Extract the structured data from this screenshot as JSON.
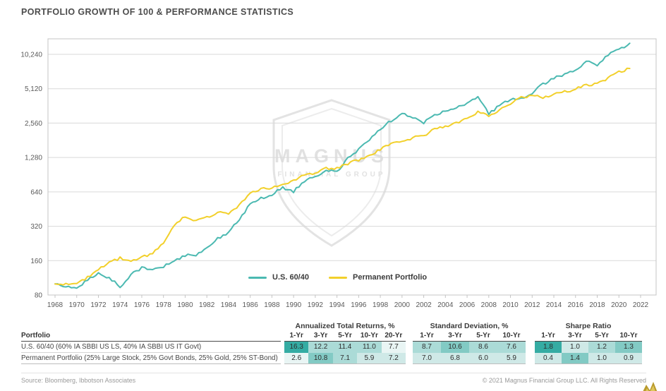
{
  "page": {
    "title": "PORTFOLIO GROWTH OF 100 & PERFORMANCE STATISTICS",
    "source_note": "Source: Bloomberg, Ibbotson Associates",
    "copyright": "© 2021 Magnus Financial Group LLC. All Rights Reserved"
  },
  "watermark": {
    "line1": "MAGNUS",
    "line2": "FINANCIAL GROUP"
  },
  "chart_data": {
    "type": "line",
    "title": "PORTFOLIO GROWTH OF 100 & PERFORMANCE STATISTICS",
    "xlabel": "",
    "ylabel": "",
    "y_scale": "log2",
    "grid": "horizontal",
    "legend_position": "inside-bottom-center",
    "ylim": [
      80,
      14000
    ],
    "xlim": [
      1967.3,
      2023.5
    ],
    "y_ticks": [
      80,
      160,
      320,
      640,
      1280,
      2560,
      5120,
      10240
    ],
    "y_tick_labels": [
      "80",
      "160",
      "320",
      "640",
      "1,280",
      "2,560",
      "5,120",
      "10,240"
    ],
    "x_ticks": [
      1968,
      1970,
      1972,
      1974,
      1976,
      1978,
      1980,
      1982,
      1984,
      1986,
      1988,
      1990,
      1992,
      1994,
      1996,
      1998,
      2000,
      2002,
      2004,
      2006,
      2008,
      2010,
      2012,
      2014,
      2016,
      2018,
      2020,
      2022
    ],
    "x": [
      1968,
      1969,
      1970,
      1971,
      1972,
      1973,
      1974,
      1975,
      1976,
      1977,
      1978,
      1979,
      1980,
      1981,
      1982,
      1983,
      1984,
      1985,
      1986,
      1987,
      1988,
      1989,
      1990,
      1991,
      1992,
      1993,
      1994,
      1995,
      1996,
      1997,
      1998,
      1999,
      2000,
      2001,
      2002,
      2003,
      2004,
      2005,
      2006,
      2007,
      2008,
      2009,
      2010,
      2011,
      2012,
      2013,
      2014,
      2015,
      2016,
      2017,
      2018,
      2019,
      2020,
      2021
    ],
    "series": [
      {
        "name": "U.S. 60/40",
        "color": "#4bb9b1",
        "values": [
          100,
          96,
          92,
          108,
          124,
          112,
          95,
          120,
          138,
          135,
          142,
          158,
          178,
          178,
          212,
          248,
          285,
          370,
          500,
          560,
          610,
          700,
          645,
          800,
          880,
          980,
          965,
          1250,
          1500,
          1850,
          2250,
          2700,
          3100,
          2900,
          2600,
          3000,
          3300,
          3500,
          3850,
          4250,
          3100,
          3650,
          4100,
          4250,
          4700,
          5600,
          6300,
          6900,
          7600,
          8800,
          8300,
          10200,
          11300,
          12800
        ]
      },
      {
        "name": "Permanent Portfolio",
        "color": "#f2d02b",
        "values": [
          100,
          99,
          103,
          114,
          132,
          155,
          168,
          162,
          170,
          185,
          230,
          330,
          390,
          360,
          385,
          420,
          415,
          490,
          620,
          680,
          690,
          760,
          800,
          900,
          930,
          1030,
          1020,
          1130,
          1220,
          1320,
          1500,
          1700,
          1800,
          1900,
          2000,
          2250,
          2400,
          2600,
          2800,
          3200,
          3000,
          3300,
          3800,
          4300,
          4500,
          4300,
          4600,
          4800,
          5100,
          5500,
          5600,
          6300,
          7200,
          7700
        ]
      }
    ]
  },
  "table": {
    "portfolio_header": "Portfolio",
    "shade_palette": [
      "#e9f5f4",
      "#cfe9e7",
      "#abdbd7",
      "#82cac4",
      "#35aca3"
    ],
    "groups": [
      {
        "title": "Annualized Total Returns, %",
        "key": "returns",
        "cols": [
          "1-Yr",
          "3-Yr",
          "5-Yr",
          "10-Yr",
          "20-Yr"
        ]
      },
      {
        "title": "Standard Deviation, %",
        "key": "std_dev",
        "cols": [
          "1-Yr",
          "3-Yr",
          "5-Yr",
          "10-Yr"
        ]
      },
      {
        "title": "Sharpe Ratio",
        "key": "sharpe",
        "cols": [
          "1-Yr",
          "3-Yr",
          "5-Yr",
          "10-Yr"
        ]
      }
    ],
    "rows": [
      {
        "name": "U.S. 60/40 (60% IA SBBI US LS, 40% IA SBBI US IT Govt)",
        "returns": [
          "16.3",
          "12.2",
          "11.4",
          "11.0",
          "7.7"
        ],
        "returns_shades": [
          4,
          2,
          2,
          2,
          0
        ],
        "std_dev": [
          "8.7",
          "10.6",
          "8.6",
          "7.6"
        ],
        "std_dev_shades": [
          2,
          3,
          2,
          2
        ],
        "sharpe": [
          "1.8",
          "1.0",
          "1.2",
          "1.3"
        ],
        "sharpe_shades": [
          4,
          1,
          2,
          3
        ]
      },
      {
        "name": "Permanent Portfolio (25% Large Stock, 25% Govt Bonds, 25% Gold, 25% ST-Bond)",
        "returns": [
          "2.6",
          "10.8",
          "7.1",
          "5.9",
          "7.2"
        ],
        "returns_shades": [
          0,
          3,
          2,
          1,
          1
        ],
        "std_dev": [
          "7.0",
          "6.8",
          "6.0",
          "5.9"
        ],
        "std_dev_shades": [
          1,
          1,
          1,
          1
        ],
        "sharpe": [
          "0.4",
          "1.4",
          "1.0",
          "0.9"
        ],
        "sharpe_shades": [
          1,
          3,
          1,
          1
        ]
      }
    ]
  },
  "colors": {
    "accent_teal": "#4bb9b1",
    "accent_gold": "#f2d02b",
    "grid_line": "#d9d9d9",
    "chart_border": "#c4c4c4",
    "axis_text": "#5a5a5a",
    "title_text": "#4c4c4c",
    "footer_text": "#9a9a9a",
    "emblem_gold_dark": "#b99a2c",
    "emblem_gold_light": "#dfc75d"
  }
}
